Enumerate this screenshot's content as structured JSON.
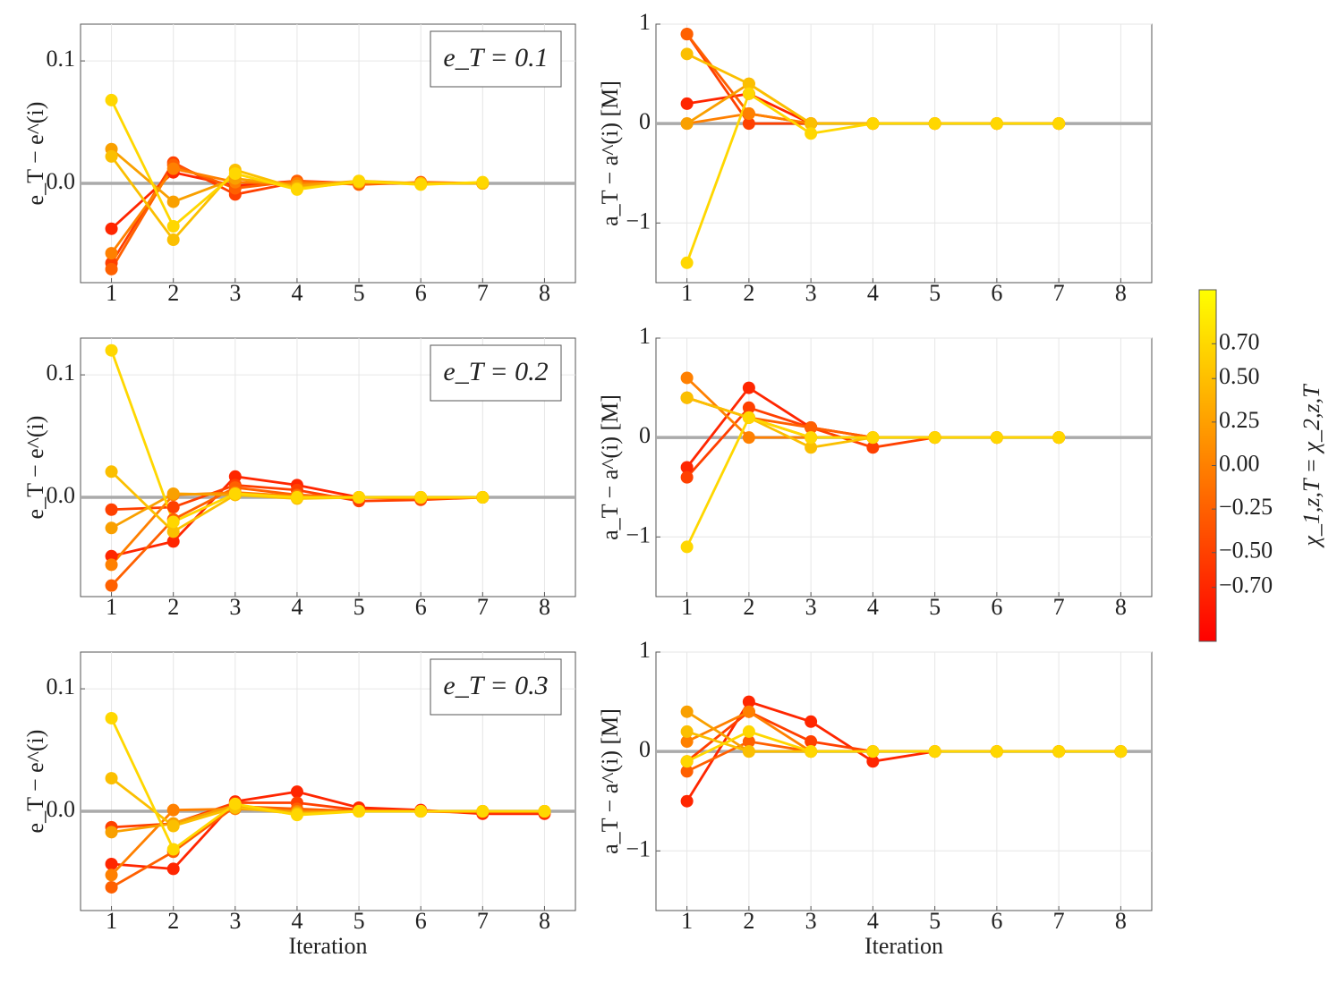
{
  "chart_data": [
    {
      "type": "line",
      "ylabel": "e_T − e^(i)",
      "annotation": "e_T = 0.1",
      "x": [
        1,
        2,
        3,
        4,
        5,
        6,
        7,
        8
      ],
      "xlim": [
        0.5,
        8.5
      ],
      "xticks": [
        1,
        2,
        3,
        4,
        5,
        6,
        7,
        8
      ],
      "ylim": [
        -0.081,
        0.13
      ],
      "yticks": [
        {
          "value": 0,
          "label": "0.0"
        },
        0.1
      ],
      "grid": true,
      "hline": 0,
      "series": [
        {
          "color": "#ff2600",
          "values": [
            -0.037,
            0.009,
            -0.002,
            0.002,
            0,
            0,
            0,
            null
          ]
        },
        {
          "color": "#ff4000",
          "values": [
            -0.065,
            0.017,
            -0.009,
            0.001,
            0,
            0,
            0,
            null
          ]
        },
        {
          "color": "#ff6000",
          "values": [
            -0.07,
            0.015,
            -0.004,
            0.002,
            -0.001,
            0.001,
            0,
            null
          ]
        },
        {
          "color": "#ff8000",
          "values": [
            -0.057,
            0.012,
            0.001,
            0,
            0.001,
            0,
            0,
            null
          ]
        },
        {
          "color": "#f9a000",
          "values": [
            0.028,
            -0.015,
            0.004,
            -0.002,
            0.002,
            0,
            0,
            null
          ]
        },
        {
          "color": "#fbbf00",
          "values": [
            0.022,
            -0.046,
            0.011,
            -0.004,
            0.001,
            0,
            0,
            null
          ]
        },
        {
          "color": "#ffd700",
          "values": [
            0.068,
            -0.035,
            0.008,
            -0.005,
            0.002,
            -0.001,
            0.001,
            null
          ]
        }
      ]
    },
    {
      "type": "line",
      "ylabel": "a_T − a^(i) [M]",
      "x": [
        1,
        2,
        3,
        4,
        5,
        6,
        7,
        8
      ],
      "xlim": [
        0.5,
        8.5
      ],
      "xticks": [
        1,
        2,
        3,
        4,
        5,
        6,
        7,
        8
      ],
      "ylim": [
        -1.6,
        1
      ],
      "yticks": [
        {
          "value": -1,
          "label": "−1"
        },
        0,
        1
      ],
      "grid": true,
      "hline": 0,
      "series": [
        {
          "color": "#ff2600",
          "values": [
            0.2,
            0.3,
            0,
            0,
            0,
            0,
            0,
            null
          ]
        },
        {
          "color": "#ff4000",
          "values": [
            0.9,
            0,
            0,
            0,
            0,
            0,
            0,
            null
          ]
        },
        {
          "color": "#ff6000",
          "values": [
            0.9,
            0.1,
            0,
            0,
            0,
            0,
            0,
            null
          ]
        },
        {
          "color": "#ff8000",
          "values": [
            0,
            0.1,
            0,
            0,
            0,
            0,
            0,
            null
          ]
        },
        {
          "color": "#f9a000",
          "values": [
            0,
            0.4,
            0,
            0,
            0,
            0,
            0,
            null
          ]
        },
        {
          "color": "#fbbf00",
          "values": [
            0.7,
            0.4,
            0,
            0,
            0,
            0,
            0,
            null
          ]
        },
        {
          "color": "#ffd700",
          "values": [
            -1.4,
            0.3,
            -0.1,
            0,
            0,
            0,
            0,
            null
          ]
        }
      ]
    },
    {
      "type": "line",
      "ylabel": "e_T − e^(i)",
      "annotation": "e_T = 0.2",
      "x": [
        1,
        2,
        3,
        4,
        5,
        6,
        7,
        8
      ],
      "xlim": [
        0.5,
        8.5
      ],
      "xticks": [
        1,
        2,
        3,
        4,
        5,
        6,
        7,
        8
      ],
      "ylim": [
        -0.081,
        0.13
      ],
      "yticks": [
        {
          "value": 0,
          "label": "0.0"
        },
        0.1
      ],
      "grid": true,
      "hline": 0,
      "series": [
        {
          "color": "#ff2600",
          "values": [
            -0.048,
            -0.036,
            0.017,
            0.01,
            0,
            0,
            0,
            null
          ]
        },
        {
          "color": "#ff4000",
          "values": [
            -0.01,
            -0.008,
            0.01,
            0.006,
            -0.003,
            -0.002,
            0,
            null
          ]
        },
        {
          "color": "#ff6000",
          "values": [
            -0.072,
            -0.018,
            0.008,
            0.002,
            0,
            -0.001,
            0,
            null
          ]
        },
        {
          "color": "#ff8000",
          "values": [
            -0.055,
            0.002,
            0.004,
            0.001,
            0,
            0,
            0,
            null
          ]
        },
        {
          "color": "#f9a000",
          "values": [
            -0.025,
            0.003,
            0.002,
            0,
            0,
            0,
            0,
            null
          ]
        },
        {
          "color": "#fbbf00",
          "values": [
            0.021,
            -0.028,
            0.002,
            -0.001,
            0,
            0,
            0,
            null
          ]
        },
        {
          "color": "#ffd700",
          "values": [
            0.12,
            -0.02,
            0.003,
            0,
            0,
            0,
            0,
            null
          ]
        }
      ]
    },
    {
      "type": "line",
      "ylabel": "a_T − a^(i) [M]",
      "x": [
        1,
        2,
        3,
        4,
        5,
        6,
        7,
        8
      ],
      "xlim": [
        0.5,
        8.5
      ],
      "xticks": [
        1,
        2,
        3,
        4,
        5,
        6,
        7,
        8
      ],
      "ylim": [
        -1.6,
        1
      ],
      "yticks": [
        {
          "value": -1,
          "label": "−1"
        },
        0,
        1
      ],
      "grid": true,
      "hline": 0,
      "series": [
        {
          "color": "#ff2600",
          "values": [
            -0.3,
            0.5,
            0.1,
            0,
            0,
            0,
            0,
            null
          ]
        },
        {
          "color": "#ff4000",
          "values": [
            -0.4,
            0.3,
            0.1,
            -0.1,
            0,
            0,
            0,
            null
          ]
        },
        {
          "color": "#ff6000",
          "values": [
            0.4,
            0.2,
            0.1,
            0,
            0,
            0,
            0,
            null
          ]
        },
        {
          "color": "#ff8000",
          "values": [
            0.6,
            0,
            0,
            0,
            0,
            0,
            0,
            null
          ]
        },
        {
          "color": "#f9a000",
          "values": [
            0.4,
            0.2,
            0,
            0,
            0,
            0,
            0,
            null
          ]
        },
        {
          "color": "#fbbf00",
          "values": [
            0.4,
            0.2,
            -0.1,
            0,
            0,
            0,
            0,
            null
          ]
        },
        {
          "color": "#ffd700",
          "values": [
            -1.1,
            0.2,
            0,
            0,
            0,
            0,
            0,
            null
          ]
        }
      ]
    },
    {
      "type": "line",
      "ylabel": "e_T − e^(i)",
      "annotation": "e_T = 0.3",
      "xlabel": "Iteration",
      "x": [
        1,
        2,
        3,
        4,
        5,
        6,
        7,
        8
      ],
      "xlim": [
        0.5,
        8.5
      ],
      "xticks": [
        1,
        2,
        3,
        4,
        5,
        6,
        7,
        8
      ],
      "ylim": [
        -0.081,
        0.13
      ],
      "yticks": [
        {
          "value": 0,
          "label": "0.0"
        },
        0.1
      ],
      "grid": true,
      "hline": 0,
      "series": [
        {
          "color": "#ff2600",
          "values": [
            -0.043,
            -0.047,
            0.008,
            0.016,
            0.003,
            0.001,
            -0.002,
            -0.002
          ]
        },
        {
          "color": "#ff4000",
          "values": [
            -0.013,
            -0.01,
            0.007,
            0.007,
            0.001,
            0,
            -0.001,
            -0.001
          ]
        },
        {
          "color": "#ff6000",
          "values": [
            -0.062,
            -0.033,
            0.004,
            0.002,
            0,
            0,
            0,
            0
          ]
        },
        {
          "color": "#ff8000",
          "values": [
            -0.052,
            0.001,
            0.002,
            0,
            0,
            0,
            0,
            0
          ]
        },
        {
          "color": "#f9a000",
          "values": [
            -0.017,
            -0.01,
            0.005,
            -0.001,
            0,
            0,
            0,
            0
          ]
        },
        {
          "color": "#fbbf00",
          "values": [
            0.027,
            -0.012,
            0.003,
            -0.002,
            0,
            0,
            0,
            0
          ]
        },
        {
          "color": "#ffd700",
          "values": [
            0.076,
            -0.031,
            0.006,
            -0.003,
            0,
            0,
            0,
            0
          ]
        }
      ]
    },
    {
      "type": "line",
      "ylabel": "a_T − a^(i) [M]",
      "xlabel": "Iteration",
      "x": [
        1,
        2,
        3,
        4,
        5,
        6,
        7,
        8
      ],
      "xlim": [
        0.5,
        8.5
      ],
      "xticks": [
        1,
        2,
        3,
        4,
        5,
        6,
        7,
        8
      ],
      "ylim": [
        -1.6,
        1
      ],
      "yticks": [
        {
          "value": -1,
          "label": "−1"
        },
        0,
        1
      ],
      "grid": true,
      "hline": 0,
      "series": [
        {
          "color": "#ff2600",
          "values": [
            -0.5,
            0.5,
            0.3,
            -0.1,
            0,
            0,
            0,
            0
          ]
        },
        {
          "color": "#ff4000",
          "values": [
            -0.1,
            0.4,
            0.1,
            0,
            0,
            0,
            0,
            0
          ]
        },
        {
          "color": "#ff6000",
          "values": [
            -0.2,
            0.1,
            0,
            0,
            0,
            0,
            0,
            0
          ]
        },
        {
          "color": "#ff8000",
          "values": [
            0.1,
            0.4,
            0,
            0,
            0,
            0,
            0,
            0
          ]
        },
        {
          "color": "#f9a000",
          "values": [
            0.4,
            0,
            0,
            0,
            0,
            0,
            0,
            0
          ]
        },
        {
          "color": "#fbbf00",
          "values": [
            0.2,
            0,
            0,
            0,
            0,
            0,
            0,
            0
          ]
        },
        {
          "color": "#ffd700",
          "values": [
            -0.1,
            0.2,
            0,
            0,
            0,
            0,
            0,
            0
          ]
        }
      ]
    }
  ],
  "colorbar": {
    "label": "χ_1,z,T = χ_2,z,T",
    "lim": [
      -1.01,
      1.01
    ],
    "colors": [
      "#ff0000",
      "#ff8000",
      "#ffff00"
    ],
    "ticks": [
      {
        "value": -0.7,
        "label": "−0.70"
      },
      {
        "value": -0.5,
        "label": "−0.50"
      },
      {
        "value": -0.25,
        "label": "−0.25"
      },
      {
        "value": 0,
        "label": "0.00"
      },
      {
        "value": 0.25,
        "label": "0.25"
      },
      {
        "value": 0.5,
        "label": "0.50"
      },
      {
        "value": 0.7,
        "label": "0.70"
      }
    ]
  }
}
